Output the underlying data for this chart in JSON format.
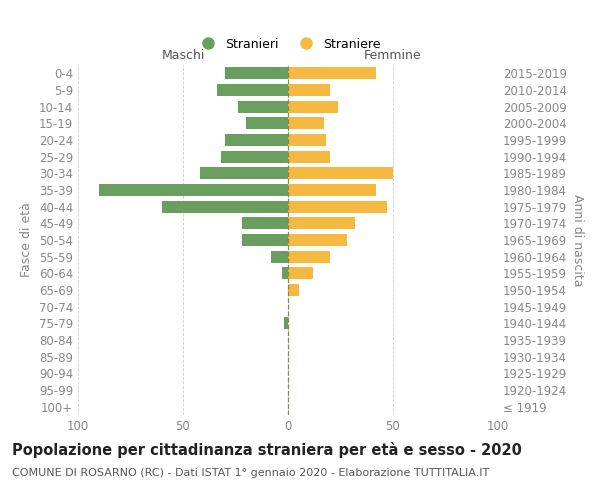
{
  "age_groups": [
    "100+",
    "95-99",
    "90-94",
    "85-89",
    "80-84",
    "75-79",
    "70-74",
    "65-69",
    "60-64",
    "55-59",
    "50-54",
    "45-49",
    "40-44",
    "35-39",
    "30-34",
    "25-29",
    "20-24",
    "15-19",
    "10-14",
    "5-9",
    "0-4"
  ],
  "birth_years": [
    "≤ 1919",
    "1920-1924",
    "1925-1929",
    "1930-1934",
    "1935-1939",
    "1940-1944",
    "1945-1949",
    "1950-1954",
    "1955-1959",
    "1960-1964",
    "1965-1969",
    "1970-1974",
    "1975-1979",
    "1980-1984",
    "1985-1989",
    "1990-1994",
    "1995-1999",
    "2000-2004",
    "2005-2009",
    "2010-2014",
    "2015-2019"
  ],
  "males": [
    0,
    0,
    0,
    0,
    0,
    2,
    0,
    0,
    3,
    8,
    22,
    22,
    60,
    90,
    42,
    32,
    30,
    20,
    24,
    34,
    30
  ],
  "females": [
    0,
    0,
    0,
    0,
    0,
    0,
    0,
    5,
    12,
    20,
    28,
    32,
    47,
    42,
    50,
    20,
    18,
    17,
    24,
    20,
    42
  ],
  "male_color": "#6a9e5f",
  "female_color": "#f5b942",
  "center_line_color": "#888844",
  "grid_color": "#cccccc",
  "background_color": "#ffffff",
  "title": "Popolazione per cittadinanza straniera per età e sesso - 2020",
  "subtitle": "COMUNE DI ROSARNO (RC) - Dati ISTAT 1° gennaio 2020 - Elaborazione TUTTITALIA.IT",
  "ylabel_left": "Fasce di età",
  "ylabel_right": "Anni di nascita",
  "xlabel_male": "Maschi",
  "xlabel_female": "Femmine",
  "legend_male": "Stranieri",
  "legend_female": "Straniere",
  "xlim": 100,
  "title_fontsize": 10.5,
  "subtitle_fontsize": 8,
  "label_fontsize": 9,
  "tick_fontsize": 8.5
}
